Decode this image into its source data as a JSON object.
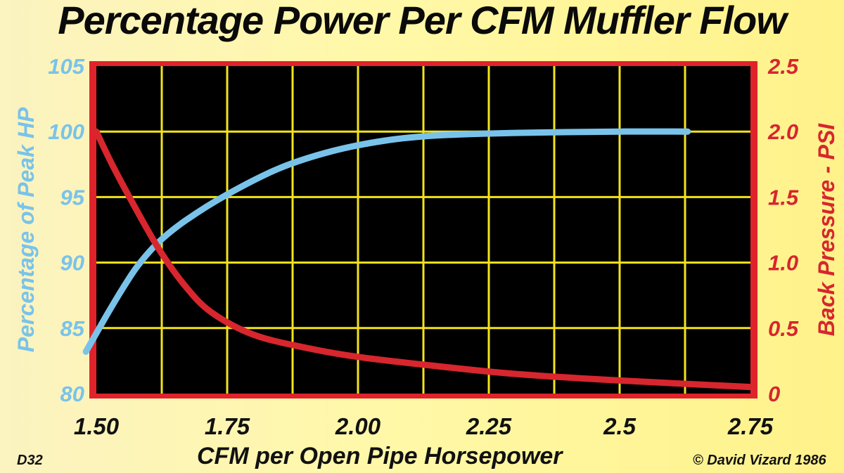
{
  "chart_data": {
    "type": "line",
    "title": "Percentage Power Per CFM Muffler Flow",
    "xlabel": "CFM per Open Pipe Horsepower",
    "ylabel_left": "Percentage of Peak HP",
    "ylabel_right": "Back Pressure - PSI",
    "x_ticks": [
      "1.50",
      "1.75",
      "2.00",
      "2.25",
      "2.5",
      "2.75"
    ],
    "y_left_ticks": [
      "80",
      "85",
      "90",
      "95",
      "100",
      "105"
    ],
    "y_right_ticks": [
      "0",
      "0.5",
      "1.0",
      "1.5",
      "2.0",
      "2.5"
    ],
    "xlim": [
      1.5,
      2.75
    ],
    "ylim_left": [
      80,
      105
    ],
    "ylim_right": [
      0,
      2.5
    ],
    "grid": true,
    "series": [
      {
        "axis": "left",
        "color": "#79c3ea",
        "x": [
          1.48,
          1.52,
          1.55,
          1.58,
          1.62,
          1.67,
          1.75,
          1.85,
          1.95,
          2.05,
          2.15,
          2.3,
          2.5,
          2.63
        ],
        "values": [
          83.2,
          86.0,
          88.0,
          89.8,
          91.6,
          93.2,
          95.2,
          97.2,
          98.5,
          99.3,
          99.7,
          99.9,
          100.0,
          100.0
        ]
      },
      {
        "axis": "right",
        "color": "#d7262e",
        "x": [
          1.5,
          1.53,
          1.57,
          1.62,
          1.67,
          1.72,
          1.8,
          1.9,
          2.0,
          2.15,
          2.3,
          2.5,
          2.75
        ],
        "values": [
          2.0,
          1.75,
          1.45,
          1.1,
          0.82,
          0.62,
          0.45,
          0.35,
          0.28,
          0.21,
          0.15,
          0.1,
          0.05
        ]
      }
    ]
  },
  "footer": {
    "figure_id": "D32",
    "copyright": "© David Vizard 1986"
  },
  "colors": {
    "plot_background": "#000000",
    "plot_border": "#e0232b",
    "grid": "#f2e31b",
    "left_axis_text": "#79c3ea",
    "right_axis_text": "#d7262e"
  }
}
